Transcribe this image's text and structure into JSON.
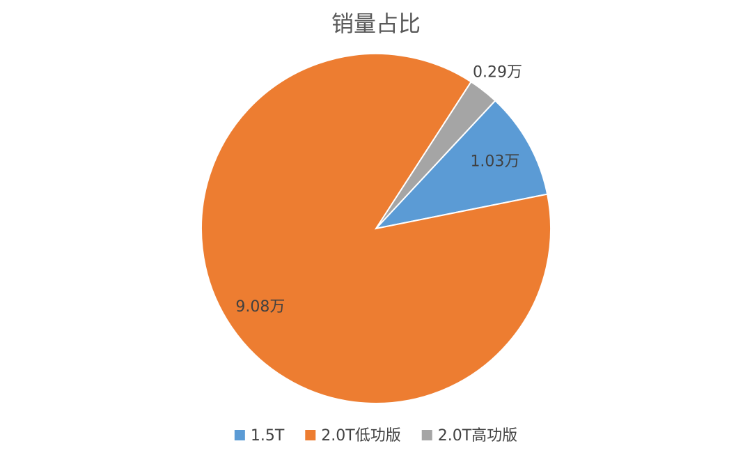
{
  "chart_data": {
    "type": "pie",
    "title": "销量占比",
    "categories": [
      "1.5T",
      "2.0T低功版",
      "2.0T高功版"
    ],
    "values": [
      1.03,
      9.08,
      0.29
    ],
    "value_labels": [
      "1.03万",
      "9.08万",
      "0.29万"
    ],
    "colors": [
      "#5b9bd5",
      "#ed7d31",
      "#a5a5a5"
    ],
    "legend": "bottom"
  }
}
